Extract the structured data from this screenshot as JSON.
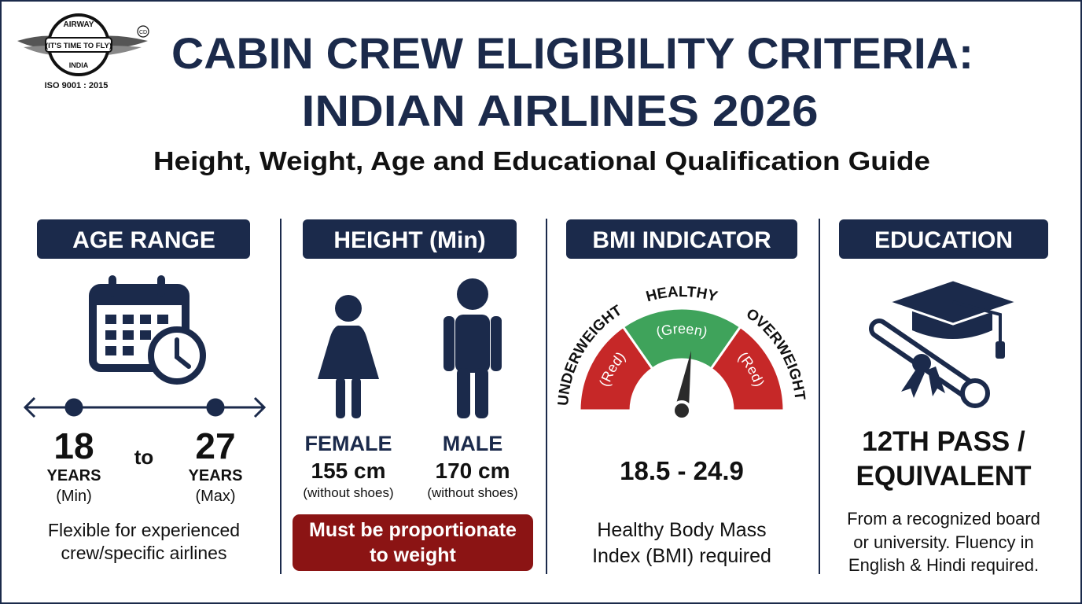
{
  "logo": {
    "top": "AIRWAY",
    "slogan": "(IT'S TIME TO FLY)",
    "bottom": "INDIA",
    "mark": "CD",
    "cert": "ISO 9001 : 2015"
  },
  "header": {
    "title_lines": [
      "CABIN CREW ELIGIBILITY CRITERIA:",
      "INDIAN AIRLINES 2026"
    ],
    "subtitle": "Height, Weight, Age and Educational Qualification Guide"
  },
  "age": {
    "heading": "AGE RANGE",
    "min": {
      "value": "18",
      "unit": "YEARS",
      "note": "(Min)"
    },
    "connector": "to",
    "max": {
      "value": "27",
      "unit": "YEARS",
      "note": "(Max)"
    },
    "note_lines": [
      "Flexible for experienced",
      "crew/specific airlines"
    ]
  },
  "height": {
    "heading": "HEIGHT (Min)",
    "female": {
      "label": "FEMALE",
      "value": "155 cm",
      "note": "(without shoes)"
    },
    "male": {
      "label": "MALE",
      "value": "170 cm",
      "note": "(without shoes)"
    },
    "alert_lines": [
      "Must be proportionate",
      "to weight"
    ]
  },
  "bmi": {
    "heading": "BMI INDICATOR",
    "gauge": [
      {
        "label": "UNDERWEIGHT",
        "color_label": "(Red)"
      },
      {
        "label": "HEALTHY",
        "color_label": "(Green)"
      },
      {
        "label": "OVERWEIGHT",
        "color_label": "(Red)"
      }
    ],
    "range": "18.5 - 24.9",
    "note_lines": [
      "Healthy Body Mass",
      "Index (BMI) required"
    ]
  },
  "education": {
    "heading": "EDUCATION",
    "qualification_lines": [
      "12TH PASS /",
      "EQUIVALENT"
    ],
    "note_lines": [
      "From a recognized board",
      "or university. Fluency in",
      "English & Hindi required."
    ]
  }
}
